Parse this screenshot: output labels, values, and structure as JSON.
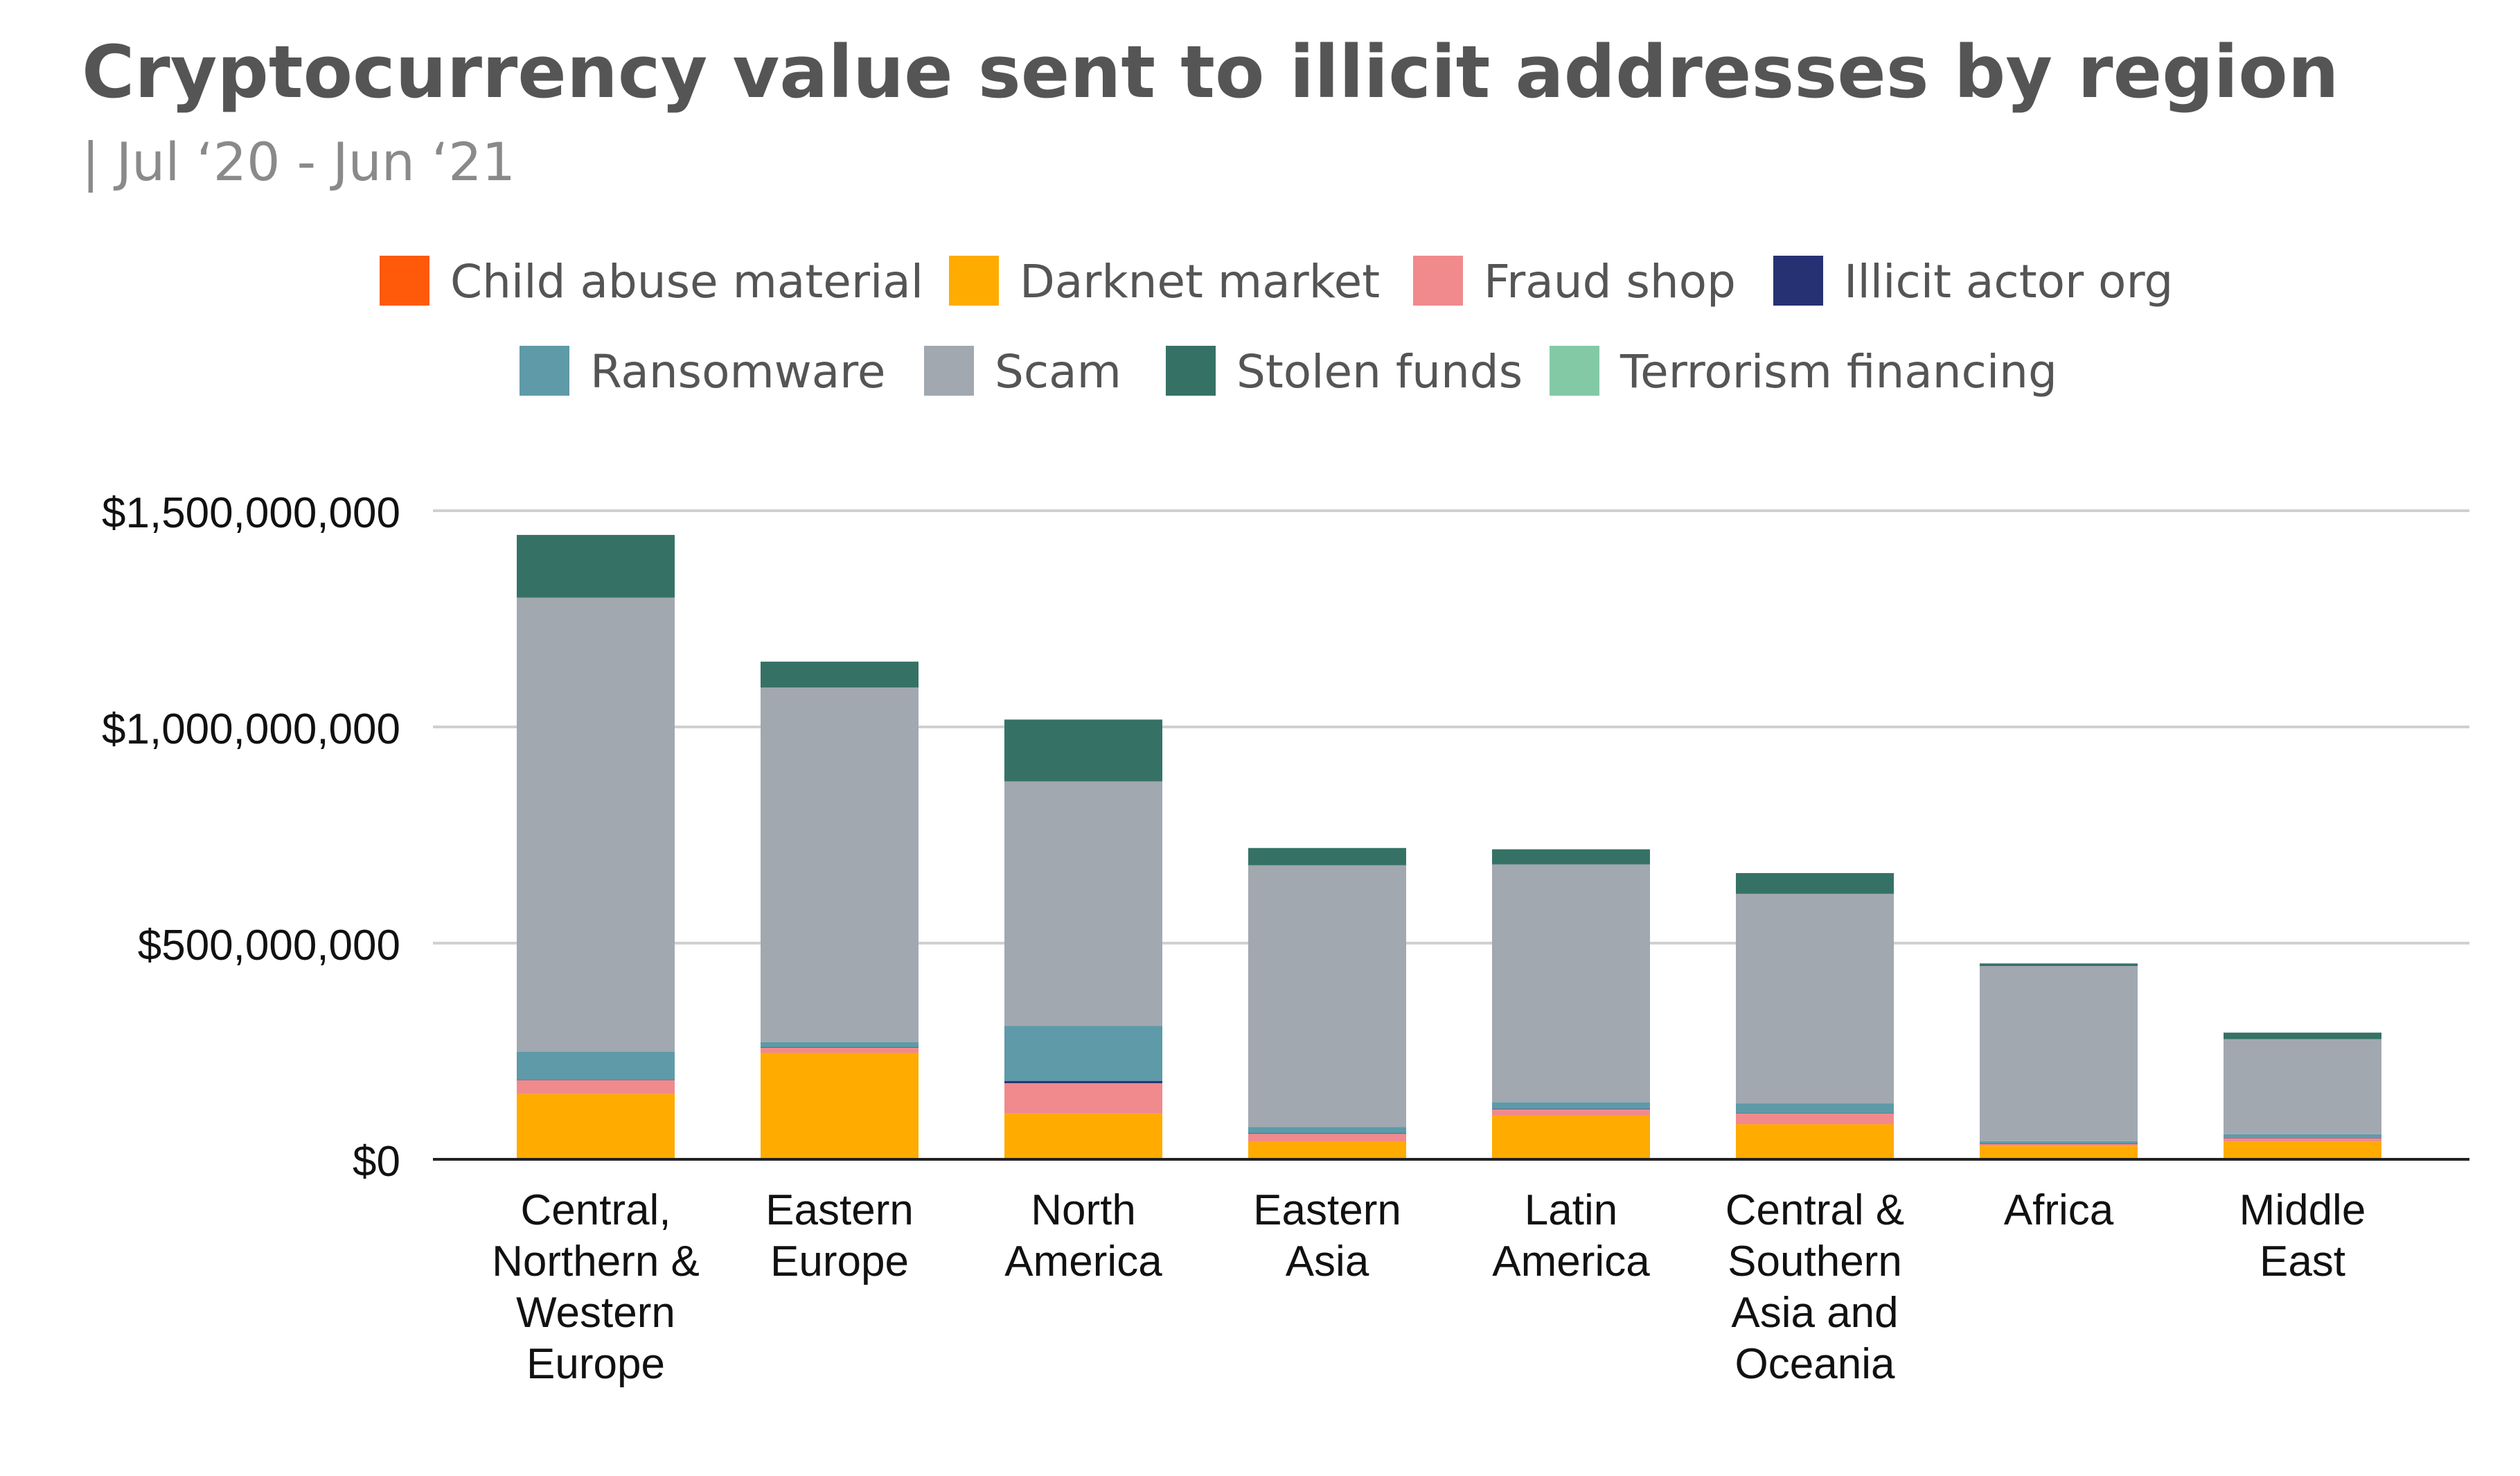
{
  "chart_data": {
    "type": "bar",
    "stacked": true,
    "title": "Cryptocurrency value sent to illicit addresses by region",
    "subtitle": "| Jul ‘20 - Jun ‘21",
    "xlabel": "",
    "ylabel": "",
    "ylim": [
      0,
      1500000000
    ],
    "yticks": [
      0,
      500000000,
      1000000000,
      1500000000
    ],
    "ytick_labels": [
      "$0",
      "$500,000,000",
      "$1,000,000,000",
      "$1,500,000,000"
    ],
    "grid": true,
    "legend_position": "top-center",
    "categories": [
      [
        "Central,",
        "Northern &",
        "Western",
        "Europe"
      ],
      [
        "Eastern",
        "Europe"
      ],
      [
        "North",
        "America"
      ],
      [
        "Eastern",
        "Asia"
      ],
      [
        "Latin",
        "America"
      ],
      [
        "Central &",
        "Southern",
        "Asia and",
        "Oceania"
      ],
      [
        "Africa"
      ],
      [
        "Middle",
        "East"
      ]
    ],
    "series": [
      {
        "name": "Child abuse material",
        "color": "#ff5a0a",
        "values": [
          1000000,
          1000000,
          1000000,
          1000000,
          1000000,
          1000000,
          1000000,
          1000000
        ]
      },
      {
        "name": "Darknet market",
        "color": "#ffab00",
        "values": [
          150000000,
          245000000,
          105000000,
          40000000,
          100000000,
          80000000,
          30000000,
          40000000
        ]
      },
      {
        "name": "Fraud shop",
        "color": "#f08a8c",
        "values": [
          32000000,
          12000000,
          70000000,
          18000000,
          15000000,
          25000000,
          5000000,
          8000000
        ]
      },
      {
        "name": "Illicit actor org",
        "color": "#263173",
        "values": [
          1000000,
          1000000,
          5000000,
          1000000,
          1000000,
          1000000,
          1000000,
          1000000
        ]
      },
      {
        "name": "Ransomware",
        "color": "#5e9aa8",
        "values": [
          65000000,
          12000000,
          128000000,
          15000000,
          15000000,
          22000000,
          5000000,
          8000000
        ]
      },
      {
        "name": "Scam",
        "color": "#a2a8b0",
        "values": [
          1050000000,
          820000000,
          565000000,
          605000000,
          550000000,
          485000000,
          405000000,
          220000000
        ]
      },
      {
        "name": "Stolen funds",
        "color": "#357265",
        "values": [
          145000000,
          60000000,
          143000000,
          40000000,
          35000000,
          48000000,
          6000000,
          15000000
        ]
      },
      {
        "name": "Terrorism financing",
        "color": "#83c9a5",
        "values": [
          0,
          0,
          0,
          0,
          0,
          0,
          0,
          0
        ]
      }
    ]
  },
  "colors": {
    "title": "#555555",
    "subtitle": "#8a8a8a",
    "gridline": "#d0d0d0",
    "axis": "#222222",
    "background": "#ffffff"
  }
}
